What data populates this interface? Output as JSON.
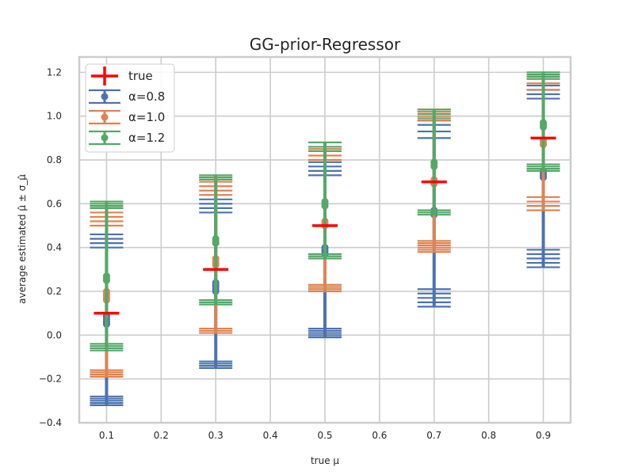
{
  "chart_data": {
    "type": "scatter",
    "title": "GG-prior-Regressor",
    "xlabel": "true μ",
    "ylabel": "average estimated μ̂ ± σ_μ̂",
    "xlim": [
      0.05,
      0.95
    ],
    "ylim": [
      -0.4,
      1.27
    ],
    "xticks": [
      "0.1",
      "0.2",
      "0.3",
      "0.4",
      "0.5",
      "0.6",
      "0.7",
      "0.8",
      "0.9"
    ],
    "yticks": [
      "−0.4",
      "−0.2",
      "0.0",
      "0.2",
      "0.4",
      "0.6",
      "0.8",
      "1.0",
      "1.2"
    ],
    "grid": true,
    "legend": {
      "position": "upper-left",
      "entries": [
        "true",
        "α=0.8",
        "α=1.0",
        "α=1.2"
      ]
    },
    "x": [
      0.1,
      0.3,
      0.5,
      0.7,
      0.9
    ],
    "true_values": [
      0.1,
      0.3,
      0.5,
      0.7,
      0.9
    ],
    "series": [
      {
        "name": "α=0.8",
        "color": "#4c72b0",
        "means": [
          [
            0.05,
            0.06,
            0.07,
            0.08,
            0.09
          ],
          [
            0.2,
            0.21,
            0.22,
            0.23,
            0.24
          ],
          [
            0.37,
            0.38,
            0.39,
            0.4
          ],
          [
            0.55,
            0.56,
            0.57
          ],
          [
            0.72,
            0.73,
            0.74,
            0.75
          ]
        ],
        "lower": [
          [
            -0.32,
            -0.31,
            -0.3,
            -0.29,
            -0.28
          ],
          [
            -0.15,
            -0.14,
            -0.13,
            -0.12
          ],
          [
            -0.01,
            0.0,
            0.01,
            0.02,
            0.03
          ],
          [
            0.13,
            0.15,
            0.17,
            0.19,
            0.21
          ],
          [
            0.31,
            0.33,
            0.35,
            0.37,
            0.39
          ]
        ],
        "upper": [
          [
            0.4,
            0.42,
            0.44,
            0.46
          ],
          [
            0.56,
            0.58,
            0.6,
            0.62
          ],
          [
            0.73,
            0.75,
            0.77,
            0.79
          ],
          [
            0.9,
            0.93,
            0.96,
            0.98
          ],
          [
            1.08,
            1.1,
            1.12,
            1.14
          ]
        ]
      },
      {
        "name": "α=1.0",
        "color": "#dd8452",
        "means": [
          [
            0.16,
            0.17,
            0.18,
            0.19,
            0.2
          ],
          [
            0.32,
            0.33,
            0.34,
            0.35
          ],
          [
            0.5,
            0.51,
            0.52
          ],
          [
            0.69,
            0.7,
            0.71
          ],
          [
            0.87,
            0.88,
            0.89
          ]
        ],
        "lower": [
          [
            -0.19,
            -0.18,
            -0.17,
            -0.16
          ],
          [
            0.01,
            0.02,
            0.03
          ],
          [
            0.2,
            0.21,
            0.22,
            0.23
          ],
          [
            0.38,
            0.39,
            0.4,
            0.41,
            0.42,
            0.43
          ],
          [
            0.57,
            0.59,
            0.61,
            0.63
          ]
        ],
        "upper": [
          [
            0.5,
            0.52,
            0.54,
            0.56,
            0.58
          ],
          [
            0.64,
            0.66,
            0.68,
            0.7,
            0.72
          ],
          [
            0.8,
            0.82,
            0.84,
            0.85
          ],
          [
            0.98,
            1.0,
            1.02,
            1.03
          ],
          [
            1.12,
            1.15,
            1.17,
            1.19
          ]
        ]
      },
      {
        "name": "α=1.2",
        "color": "#55a868",
        "means": [
          [
            0.25,
            0.26,
            0.27
          ],
          [
            0.42,
            0.43,
            0.44
          ],
          [
            0.59,
            0.6,
            0.61
          ],
          [
            0.77,
            0.78,
            0.79
          ],
          [
            0.95,
            0.96,
            0.97
          ]
        ],
        "lower": [
          [
            -0.07,
            -0.06,
            -0.05,
            -0.04
          ],
          [
            0.14,
            0.15,
            0.16
          ],
          [
            0.35,
            0.36,
            0.37
          ],
          [
            0.55,
            0.56,
            0.57
          ],
          [
            0.75,
            0.76,
            0.77,
            0.78
          ]
        ],
        "upper": [
          [
            0.58,
            0.59,
            0.6,
            0.61
          ],
          [
            0.71,
            0.72,
            0.73
          ],
          [
            0.84,
            0.86,
            0.88
          ],
          [
            0.99,
            1.01,
            1.03
          ],
          [
            1.17,
            1.18,
            1.19,
            1.2
          ]
        ]
      }
    ]
  }
}
